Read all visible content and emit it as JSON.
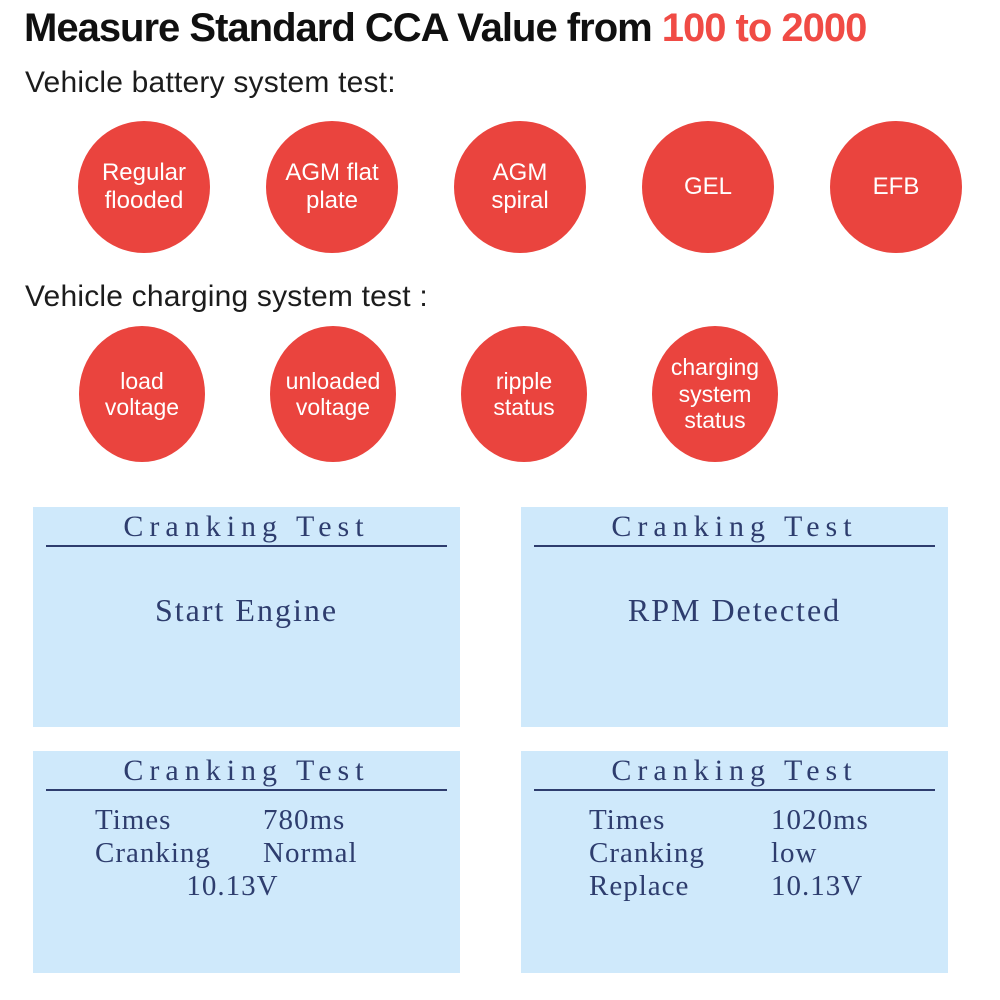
{
  "colors": {
    "accent_red_title": "#f04b45",
    "bubble_red": "#ea443e",
    "panel_background": "#cfe9fb",
    "panel_text_navy": "#2e3d6e",
    "heading_text": "#1c1c1c"
  },
  "header": {
    "title_prefix": "Measure Standard CCA Value from",
    "title_highlight": "100 to 2000"
  },
  "battery_section": {
    "heading": "Vehicle battery system test:",
    "bubbles": [
      "Regular flooded",
      "AGM flat plate",
      "AGM spiral",
      "GEL",
      "EFB"
    ]
  },
  "charging_section": {
    "heading": "Vehicle charging system test :",
    "bubbles": [
      "load voltage",
      "unloaded voltage",
      "ripple status",
      "charging system status"
    ]
  },
  "panels": [
    {
      "title": "Cranking Test",
      "message": "Start Engine"
    },
    {
      "title": "Cranking Test",
      "message": "RPM Detected"
    },
    {
      "title": "Cranking Test",
      "rows": [
        {
          "label": "Times",
          "value": "780ms"
        },
        {
          "label": "Cranking",
          "value": "Normal"
        },
        {
          "label": "",
          "value": "10.13V"
        }
      ]
    },
    {
      "title": "Cranking Test",
      "rows": [
        {
          "label": "Times",
          "value": "1020ms"
        },
        {
          "label": "Cranking",
          "value": "low"
        },
        {
          "label": "Replace",
          "value": "10.13V"
        }
      ]
    }
  ]
}
